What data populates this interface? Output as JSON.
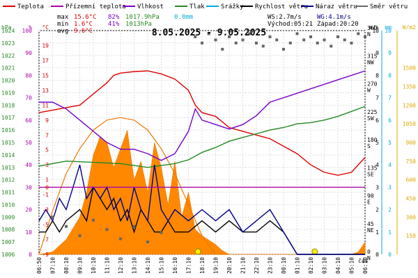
{
  "legend": [
    {
      "label": "Teplota",
      "color": "#dd0000"
    },
    {
      "label": "Přízemní teplota",
      "color": "#aa00aa"
    },
    {
      "label": "Vlhkost",
      "color": "#7700cc"
    },
    {
      "label": "Tlak",
      "color": "#228822"
    },
    {
      "label": "Srážky",
      "color": "#00aadd"
    },
    {
      "label": "Rychlost větru",
      "color": "#000000"
    },
    {
      "label": "Náraz větru",
      "color": "#000088"
    },
    {
      "label": "Směr větru",
      "color": "#666666"
    }
  ],
  "stats": {
    "max_label": "max",
    "min_label": "min",
    "avg_label": "avg",
    "max_t": "15.6°C",
    "max_h": "82%",
    "max_p": "1017.9hPa",
    "max_r": "0.0mm",
    "min_t": "1.6°C",
    "min_h": "41%",
    "min_p": "1013hPa",
    "avg_t": "9.6°C",
    "ws": "WS:2.7m/s",
    "wg": "WG:4.1m/s",
    "sunrise": "Východ:05:21",
    "sunset": "Západ:20:20"
  },
  "chart_data": {
    "type": "line",
    "title": "8.05.2025 - 9.05.2025",
    "x_ticks": [
      "06:50",
      "07:10",
      "08:10",
      "09:10",
      "10:10",
      "11:10",
      "12:10",
      "13:10",
      "14:10",
      "15:10",
      "16:10",
      "17:10",
      "18:10",
      "19:10",
      "20:10",
      "21:10",
      "22:10",
      "23:10",
      "00:10",
      "01:10",
      "02:10",
      "03:10",
      "04:10",
      "05:10",
      "06:10"
    ],
    "x_unit": "čas",
    "axes": {
      "hpa": {
        "label": "hPa",
        "color": "#228822",
        "range": [
          1006,
          1024
        ],
        "ticks": [
          1006,
          1007,
          1008,
          1009,
          1010,
          1011,
          1012,
          1013,
          1014,
          1015,
          1016,
          1017,
          1018,
          1019,
          1020,
          1021,
          1022,
          1023,
          1024
        ]
      },
      "pct": {
        "label": "%",
        "color": "#aa00aa",
        "range": [
          0,
          100
        ],
        "ticks": [
          0,
          10,
          20,
          30,
          40,
          50,
          60,
          70,
          80,
          90,
          100
        ]
      },
      "temp": {
        "label": "°C",
        "color": "#dd0000",
        "range": [
          -9,
          21
        ],
        "ticks": [
          -9,
          -7,
          -5,
          -3,
          -1,
          0,
          1,
          3,
          5,
          7,
          9,
          11,
          13,
          15,
          17,
          19
        ]
      },
      "ms": {
        "label": "m/s",
        "color": "#000000",
        "range": [
          0,
          10
        ],
        "ticks": [
          0,
          1,
          2,
          3,
          4,
          5,
          6,
          7,
          8,
          9,
          10
        ]
      },
      "mm": {
        "label": "mm",
        "color": "#00aadd",
        "range": [
          0,
          10
        ],
        "ticks": [
          0,
          1,
          2,
          3,
          4,
          5,
          6,
          7,
          8,
          9,
          10
        ]
      },
      "wm2": {
        "label": "W/m2",
        "color": "#ddaa00",
        "range": [
          0,
          1800
        ],
        "ticks": [
          150,
          300,
          450,
          600,
          750,
          900,
          1050,
          1200,
          1350,
          1500
        ]
      },
      "deg": {
        "ticks": [
          {
            "v": 0,
            "l": "0",
            "d": "N"
          },
          {
            "v": 45,
            "l": "45",
            "d": "NE"
          },
          {
            "v": 90,
            "l": "90",
            "d": "E"
          },
          {
            "v": 135,
            "l": "135",
            "d": "SE"
          },
          {
            "v": 180,
            "l": "180",
            "d": "S"
          },
          {
            "v": 225,
            "l": "225",
            "d": "SW"
          },
          {
            "v": 270,
            "l": "270",
            "d": "W"
          },
          {
            "v": 315,
            "l": "315",
            "d": "NW"
          },
          {
            "v": 360,
            "l": "360",
            "d": "N"
          }
        ]
      }
    },
    "series": [
      {
        "name": "Teplota",
        "axis": "temp",
        "color": "#dd0000",
        "x": [
          0,
          1.5,
          3,
          4,
          5,
          5.5,
          6,
          7,
          8,
          9,
          10,
          11,
          11.5,
          12,
          13,
          14,
          15,
          16,
          17,
          18,
          19,
          20,
          21,
          22,
          23,
          24
        ],
        "y": [
          10,
          10.5,
          11,
          12.5,
          14,
          15,
          15.3,
          15.5,
          15.6,
          15.2,
          14.5,
          13,
          11,
          10,
          9.5,
          8,
          7.5,
          7,
          6.5,
          5.5,
          4.5,
          3,
          2,
          1.6,
          2,
          4
        ]
      },
      {
        "name": "Vlhkost",
        "axis": "pct",
        "color": "#7700cc",
        "x": [
          0,
          1,
          2,
          3,
          4,
          5,
          6,
          7,
          8,
          9,
          10,
          11,
          11.5,
          12,
          13,
          14,
          15,
          16,
          17,
          18,
          19,
          20,
          21,
          22,
          23,
          24
        ],
        "y": [
          68,
          68,
          65,
          60,
          55,
          50,
          47,
          47,
          45,
          42,
          45,
          55,
          65,
          60,
          58,
          56,
          58,
          62,
          68,
          70,
          72,
          74,
          76,
          78,
          80,
          82
        ]
      },
      {
        "name": "Tlak",
        "axis": "hpa",
        "color": "#228822",
        "x": [
          0,
          2,
          4,
          6,
          8,
          10,
          11,
          12,
          13,
          14,
          15,
          16,
          17,
          18,
          19,
          20,
          21,
          22,
          23,
          24
        ],
        "y": [
          1013.1,
          1013.5,
          1013.4,
          1013.3,
          1013.0,
          1013.3,
          1013.6,
          1014.2,
          1014.6,
          1015.1,
          1015.4,
          1015.7,
          1016.0,
          1016.2,
          1016.5,
          1016.6,
          1016.8,
          1017.1,
          1017.5,
          1017.9
        ]
      },
      {
        "name": "Rychlost větru",
        "axis": "ms",
        "color": "#000000",
        "x": [
          0,
          0.5,
          1,
          1.5,
          2,
          3,
          3.5,
          4,
          4.5,
          5,
          5.5,
          6,
          6.5,
          7,
          7.5,
          8,
          8.5,
          9,
          9.5,
          10,
          11,
          12,
          13,
          14,
          15,
          16,
          17,
          18,
          19,
          20,
          21,
          22,
          23,
          24
        ],
        "y": [
          1,
          1,
          1.5,
          1,
          1.5,
          2,
          1.5,
          3,
          2.5,
          2,
          2.5,
          1.5,
          2,
          1,
          2,
          1.5,
          1,
          1,
          1.5,
          1,
          1,
          1.5,
          1,
          1.5,
          1,
          1,
          1.5,
          1,
          0,
          0,
          0,
          0,
          0,
          0
        ]
      },
      {
        "name": "Náraz větru",
        "axis": "ms",
        "color": "#000088",
        "x": [
          0,
          0.5,
          1,
          1.5,
          2,
          2.5,
          3,
          3.5,
          4,
          4.5,
          5,
          5.5,
          6,
          6.5,
          7,
          7.5,
          8,
          8.5,
          9,
          9.5,
          10,
          11,
          12,
          13,
          14,
          15,
          16,
          17,
          18,
          19,
          20,
          21,
          22,
          23,
          24
        ],
        "y": [
          1.5,
          2,
          1.5,
          2.5,
          2,
          3,
          4,
          2.5,
          3,
          2.5,
          3,
          2,
          2.5,
          1.5,
          3,
          2,
          1.5,
          4,
          2,
          1.5,
          2,
          1.5,
          2,
          1.5,
          2,
          1,
          1.5,
          2,
          1,
          0,
          0,
          0,
          0,
          0,
          0
        ]
      },
      {
        "name": "Přízemní teplota",
        "axis": "temp",
        "color": "#aa00aa",
        "x": [
          0,
          24
        ],
        "y": [
          0,
          0
        ]
      }
    ],
    "solar": {
      "x": [
        0,
        1,
        2,
        3,
        3.5,
        4,
        4.5,
        5,
        5.5,
        6,
        6.5,
        7,
        7.5,
        8,
        8.5,
        9,
        9.5,
        10,
        10.5,
        11,
        11.5,
        12,
        13,
        13.5,
        14,
        15,
        16,
        17,
        18,
        19,
        20,
        21,
        22,
        23,
        23.5,
        24
      ],
      "y": [
        0,
        20,
        120,
        300,
        500,
        800,
        950,
        900,
        700,
        850,
        1000,
        600,
        750,
        500,
        900,
        700,
        400,
        750,
        300,
        500,
        200,
        150,
        80,
        30,
        0,
        0,
        0,
        0,
        0,
        0,
        0,
        0,
        0,
        0,
        20,
        100
      ]
    },
    "solar_theory": {
      "x": [
        0,
        1,
        2,
        3,
        4,
        5,
        6,
        7,
        8,
        9,
        10,
        11,
        12,
        13,
        14
      ],
      "y": [
        0,
        350,
        650,
        850,
        1000,
        1080,
        1100,
        1080,
        1000,
        850,
        650,
        400,
        150,
        0,
        0
      ]
    },
    "wind_dir": {
      "x": [
        11.5,
        12,
        12.5,
        13,
        13.5,
        14,
        14.5,
        15,
        15.5,
        16,
        16.5,
        17,
        17.5,
        18,
        18.5,
        19,
        19.5,
        20,
        20.5,
        21,
        21.5,
        22,
        22.5,
        23,
        23.5,
        24,
        1,
        2,
        3,
        4,
        5,
        6,
        7,
        8,
        9
      ],
      "y": [
        350,
        340,
        355,
        345,
        330,
        350,
        340,
        345,
        355,
        340,
        335,
        350,
        345,
        330,
        340,
        355,
        345,
        350,
        340,
        345,
        335,
        350,
        345,
        340,
        355,
        350,
        60,
        45,
        30,
        55,
        40,
        25,
        45,
        20,
        35
      ]
    }
  }
}
